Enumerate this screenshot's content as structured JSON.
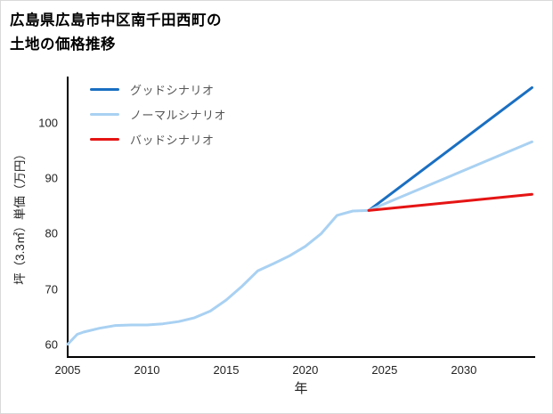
{
  "page": {
    "title_line1": "広島県広島市中区南千田西町の",
    "title_line2": "土地の価格推移"
  },
  "chart_data": {
    "type": "line",
    "title": "広島県広島市中区南千田西町の土地の価格推移",
    "xlabel": "年",
    "ylabel": "坪（3.3㎡）単価（万円）",
    "xlim": [
      2005,
      2034.5
    ],
    "ylim": [
      57.7,
      108.4
    ],
    "x_ticks": [
      2005,
      2010,
      2015,
      2020,
      2025,
      2030
    ],
    "y_ticks": [
      60,
      70,
      80,
      90,
      100
    ],
    "grid": false,
    "legend_position": "top-left",
    "axis_color": "#000000",
    "series": [
      {
        "id": "historical",
        "name": "",
        "color": "#a9d1f2",
        "in_legend": false,
        "points": [
          [
            2005,
            60.0
          ],
          [
            2005.6,
            61.8
          ],
          [
            2006,
            62.2
          ],
          [
            2007,
            62.9
          ],
          [
            2008,
            63.4
          ],
          [
            2009,
            63.5
          ],
          [
            2010,
            63.5
          ],
          [
            2011,
            63.7
          ],
          [
            2012,
            64.1
          ],
          [
            2013,
            64.8
          ],
          [
            2014,
            66.0
          ],
          [
            2015,
            68.0
          ],
          [
            2016,
            70.5
          ],
          [
            2017,
            73.3
          ],
          [
            2018,
            74.6
          ],
          [
            2019,
            76.0
          ],
          [
            2020,
            77.7
          ],
          [
            2021,
            80.0
          ],
          [
            2022,
            83.3
          ],
          [
            2023,
            84.1
          ],
          [
            2024,
            84.2
          ]
        ]
      },
      {
        "id": "good",
        "name": "グッドシナリオ",
        "color": "#1a6fc2",
        "in_legend": true,
        "points": [
          [
            2024,
            84.2
          ],
          [
            2034.3,
            106.4
          ]
        ]
      },
      {
        "id": "normal",
        "name": "ノーマルシナリオ",
        "color": "#a9d1f2",
        "in_legend": true,
        "points": [
          [
            2024,
            84.2
          ],
          [
            2034.3,
            96.6
          ]
        ]
      },
      {
        "id": "bad",
        "name": "バッドシナリオ",
        "color": "#e51414",
        "in_legend": true,
        "points": [
          [
            2024,
            84.2
          ],
          [
            2034.3,
            87.1
          ]
        ]
      }
    ]
  }
}
